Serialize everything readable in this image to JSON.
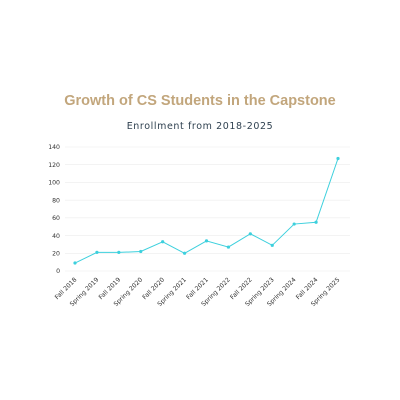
{
  "chart_data": {
    "type": "line",
    "title": "Growth of CS Students in the Capstone",
    "subtitle": "Enrollment from 2018-2025",
    "xlabel": "",
    "ylabel": "",
    "ylim": [
      0,
      140
    ],
    "yticks": [
      0,
      20,
      40,
      60,
      80,
      100,
      120,
      140
    ],
    "grid": true,
    "categories": [
      "Fall 2018",
      "Spring 2019",
      "Fall 2019",
      "Spring 2020",
      "Fall 2020",
      "Spring 2021",
      "Fall 2021",
      "Spring 2022",
      "Fall 2022",
      "Spring 2023",
      "Spring 2024",
      "Fall 2024",
      "Spring 2025"
    ],
    "series": [
      {
        "values": [
          9,
          21,
          21,
          22,
          33,
          20,
          34,
          27,
          42,
          29,
          53,
          55,
          127
        ],
        "color": "#3dd0dd"
      }
    ]
  }
}
